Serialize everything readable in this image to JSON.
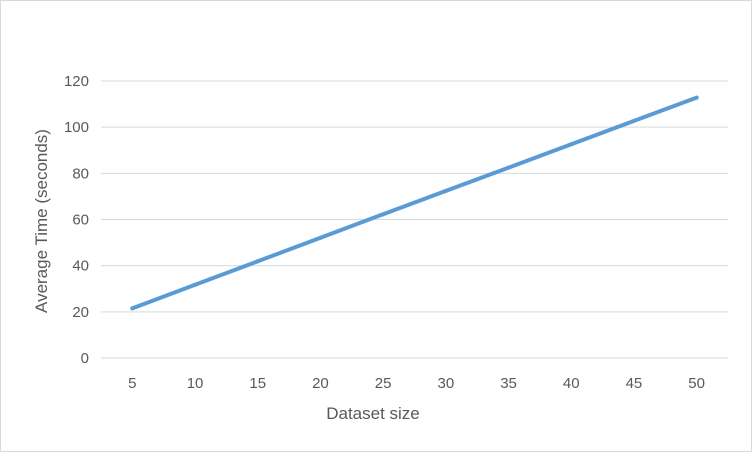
{
  "chart_data": {
    "type": "line",
    "title": "",
    "xlabel": "Dataset size",
    "ylabel": "Average Time (seconds)",
    "categories": [
      "5",
      "10",
      "15",
      "20",
      "25",
      "30",
      "35",
      "40",
      "45",
      "50"
    ],
    "series": [
      {
        "values": [
          21.5,
          31.7,
          41.9,
          52.1,
          62.3,
          72.4,
          82.5,
          92.6,
          102.7,
          112.8
        ],
        "color": "#5b9bd5"
      }
    ],
    "ylim": [
      0,
      120
    ],
    "yticks": [
      0,
      20,
      40,
      60,
      80,
      100,
      120
    ],
    "grid": true,
    "legend": "none",
    "gridline_color": "#d9d9d9",
    "text_color": "#595959"
  }
}
